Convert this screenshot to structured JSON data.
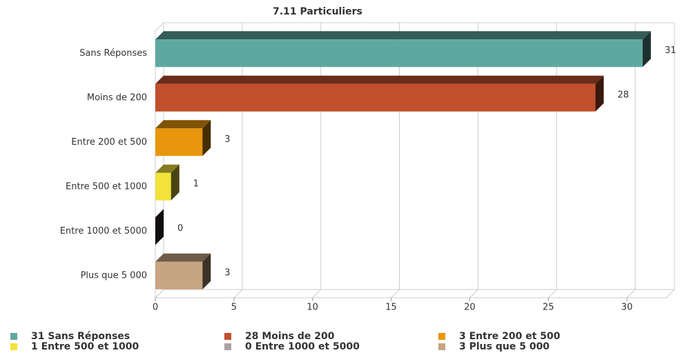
{
  "chart_data": {
    "type": "bar3d_horizontal",
    "title": "7.11 Particuliers",
    "categories": [
      "Sans Réponses",
      "Moins de 200",
      "Entre 200 et 500",
      "Entre 500 et 1000",
      "Entre 1000 et 5000",
      "Plus que 5 000"
    ],
    "values": [
      31,
      28,
      3,
      1,
      0,
      3
    ],
    "colors": [
      "#5fa8a0",
      "#c2502e",
      "#e8960c",
      "#f2e23a",
      "#3a2c34",
      "#c8a582"
    ],
    "legend_labels": [
      "31 Sans Réponses",
      "28 Moins de 200",
      "3 Entre 200 et 500",
      "1 Entre 500 et 1000",
      "0 Entre 1000 et 5000",
      "3 Plus que 5 000"
    ],
    "legend_colors": [
      "#5fa8a0",
      "#c2502e",
      "#e8960c",
      "#f2e23a",
      "#aaa0a6",
      "#c8a582"
    ],
    "xlim": [
      0,
      32.5
    ],
    "xticks": [
      0,
      5,
      10,
      15,
      20,
      25,
      30
    ],
    "grid": true
  }
}
